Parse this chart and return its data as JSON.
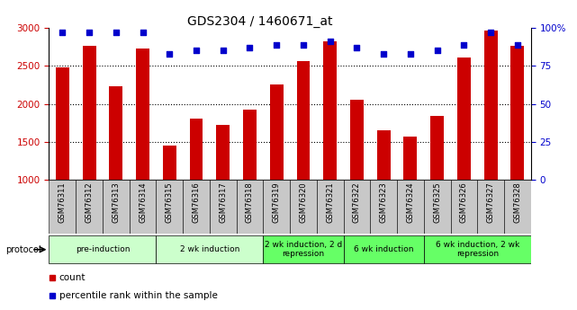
{
  "title": "GDS2304 / 1460671_at",
  "samples": [
    "GSM76311",
    "GSM76312",
    "GSM76313",
    "GSM76314",
    "GSM76315",
    "GSM76316",
    "GSM76317",
    "GSM76318",
    "GSM76319",
    "GSM76320",
    "GSM76321",
    "GSM76322",
    "GSM76323",
    "GSM76324",
    "GSM76325",
    "GSM76326",
    "GSM76327",
    "GSM76328"
  ],
  "counts": [
    2480,
    2760,
    2230,
    2730,
    1450,
    1810,
    1720,
    1920,
    2260,
    2560,
    2820,
    2060,
    1650,
    1570,
    1840,
    2610,
    2960,
    2760
  ],
  "percentile_ranks": [
    97,
    97,
    97,
    97,
    83,
    85,
    85,
    87,
    89,
    89,
    91,
    87,
    83,
    83,
    85,
    89,
    97,
    89
  ],
  "bar_color": "#cc0000",
  "dot_color": "#0000cc",
  "ylim_left": [
    1000,
    3000
  ],
  "ylim_right": [
    0,
    100
  ],
  "yticks_left": [
    1000,
    1500,
    2000,
    2500,
    3000
  ],
  "yticks_right": [
    0,
    25,
    50,
    75,
    100
  ],
  "grid_lines": [
    1500,
    2000,
    2500
  ],
  "groups": [
    {
      "label": "pre-induction",
      "start": 0,
      "end": 3,
      "color": "#ccffcc"
    },
    {
      "label": "2 wk induction",
      "start": 4,
      "end": 7,
      "color": "#ccffcc"
    },
    {
      "label": "2 wk induction, 2 d\nrepression",
      "start": 8,
      "end": 10,
      "color": "#66ff66"
    },
    {
      "label": "6 wk induction",
      "start": 11,
      "end": 13,
      "color": "#66ff66"
    },
    {
      "label": "6 wk induction, 2 wk\nrepression",
      "start": 14,
      "end": 17,
      "color": "#66ff66"
    }
  ],
  "protocol_label": "protocol",
  "legend_count_label": "count",
  "legend_pct_label": "percentile rank within the sample",
  "bg_color": "#ffffff",
  "plot_bg_color": "#ffffff",
  "bar_width": 0.5,
  "fig_width": 6.41,
  "fig_height": 3.45,
  "dpi": 100
}
